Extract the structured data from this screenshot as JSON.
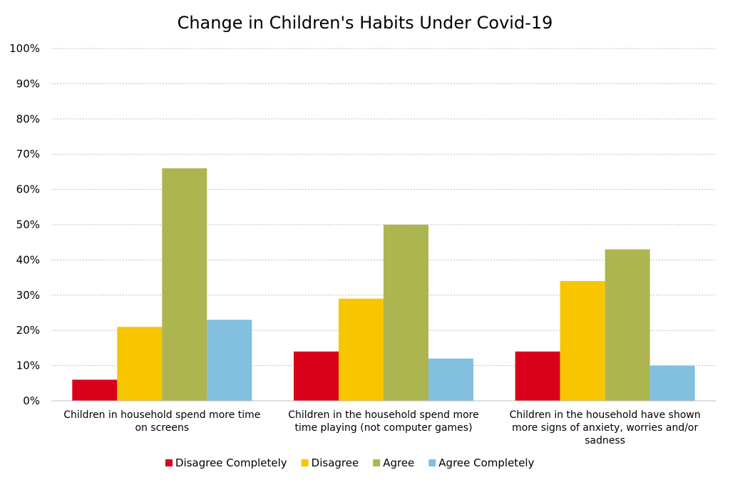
{
  "chart_data": {
    "type": "bar",
    "title": "Change in Children's Habits Under Covid-19",
    "xlabel": "",
    "ylabel": "",
    "ylim": [
      0,
      100
    ],
    "y_ticks": [
      "0%",
      "10%",
      "20%",
      "30%",
      "40%",
      "50%",
      "60%",
      "70%",
      "80%",
      "90%",
      "100%"
    ],
    "y_tick_values": [
      0,
      10,
      20,
      30,
      40,
      50,
      60,
      70,
      80,
      90,
      100
    ],
    "grid": true,
    "legend_position": "bottom",
    "categories": [
      [
        "Children in household spend more time",
        "on screens"
      ],
      [
        "Children in the household spend more",
        "time playing (not computer games)"
      ],
      [
        "Children in the household have shown",
        "more signs of anxiety, worries and/or",
        "sadness"
      ]
    ],
    "series": [
      {
        "name": "Disagree Completely",
        "color": "#d9001b",
        "values": [
          6,
          14,
          14
        ]
      },
      {
        "name": "Disagree",
        "color": "#f7c600",
        "values": [
          21,
          29,
          34
        ]
      },
      {
        "name": "Agree",
        "color": "#adb550",
        "values": [
          66,
          50,
          43
        ]
      },
      {
        "name": "Agree Completely",
        "color": "#83bfdf",
        "values": [
          23,
          12,
          10
        ]
      }
    ]
  }
}
